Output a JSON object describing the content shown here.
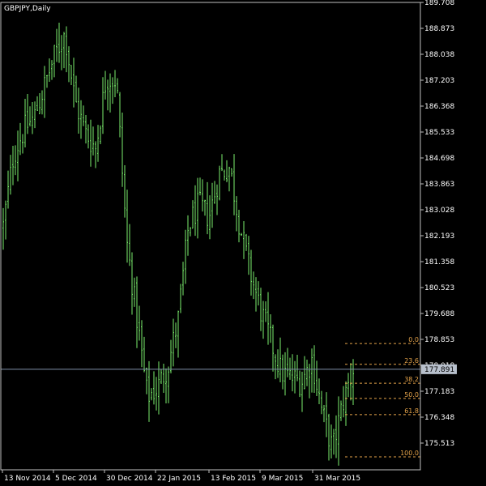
{
  "window": {
    "title": "GBPJPY,Daily"
  },
  "colors": {
    "background": "#000000",
    "grid_frame": "#c0c0c0",
    "bar": "#7cf06e",
    "fib": "#e6a44a",
    "price_line": "#8090a8",
    "price_tag_bg": "#b8c0cc",
    "price_tag_text": "#000000",
    "text": "#ffffff"
  },
  "price_tag": "177.891",
  "fibonacci": {
    "levels": [
      {
        "label": "0.0",
        "value": 178.72
      },
      {
        "label": "23.6",
        "value": 178.05
      },
      {
        "label": "38.2",
        "value": 177.44
      },
      {
        "label": "50.0",
        "value": 176.95
      },
      {
        "label": "61.8",
        "value": 176.43
      },
      {
        "label": "100.0",
        "value": 175.07
      }
    ]
  },
  "chart_data": {
    "type": "ohlc",
    "title": "GBPJPY,Daily",
    "symbol": "GBPJPY",
    "timeframe": "Daily",
    "y_ticks": [
      "189.708",
      "188.873",
      "188.038",
      "187.203",
      "186.368",
      "185.533",
      "184.698",
      "183.863",
      "183.028",
      "182.193",
      "181.358",
      "180.523",
      "179.688",
      "178.853",
      "178.018",
      "177.183",
      "176.348",
      "175.513"
    ],
    "x_ticks": [
      "13 Nov 2014",
      "5 Dec 2014",
      "30 Dec 2014",
      "22 Jan 2015",
      "13 Feb 2015",
      "9 Mar 2015",
      "31 Mar 2015"
    ],
    "ylim": [
      175.2,
      189.708
    ],
    "current_price": 177.891,
    "close_path": [
      {
        "x": "13 Nov 2014",
        "y": 182.5
      },
      {
        "x": "17 Nov 2014",
        "y": 184.8
      },
      {
        "x": "21 Nov 2014",
        "y": 185.6
      },
      {
        "x": "27 Nov 2014",
        "y": 186.0
      },
      {
        "x": "1 Dec 2014",
        "y": 187.0
      },
      {
        "x": "3 Dec 2014",
        "y": 188.0
      },
      {
        "x": "5 Dec 2014",
        "y": 188.7
      },
      {
        "x": "8 Dec 2014",
        "y": 186.5
      },
      {
        "x": "11 Dec 2014",
        "y": 185.5
      },
      {
        "x": "15 Dec 2014",
        "y": 185.0
      },
      {
        "x": "18 Dec 2014",
        "y": 187.3
      },
      {
        "x": "24 Dec 2014",
        "y": 187.2
      },
      {
        "x": "30 Dec 2014",
        "y": 182.0
      },
      {
        "x": "5 Jan 2015",
        "y": 179.5
      },
      {
        "x": "12 Jan 2015",
        "y": 177.0
      },
      {
        "x": "16 Jan 2015",
        "y": 177.3
      },
      {
        "x": "22 Jan 2015",
        "y": 178.0
      },
      {
        "x": "28 Jan 2015",
        "y": 179.5
      },
      {
        "x": "4 Feb 2015",
        "y": 182.5
      },
      {
        "x": "10 Feb 2015",
        "y": 183.2
      },
      {
        "x": "13 Feb 2015",
        "y": 182.8
      },
      {
        "x": "18 Feb 2015",
        "y": 184.2
      },
      {
        "x": "23 Feb 2015",
        "y": 184.4
      },
      {
        "x": "27 Feb 2015",
        "y": 182.5
      },
      {
        "x": "4 Mar 2015",
        "y": 181.0
      },
      {
        "x": "9 Mar 2015",
        "y": 179.8
      },
      {
        "x": "13 Mar 2015",
        "y": 178.8
      },
      {
        "x": "18 Mar 2015",
        "y": 177.8
      },
      {
        "x": "23 Mar 2015",
        "y": 177.6
      },
      {
        "x": "27 Mar 2015",
        "y": 177.5
      },
      {
        "x": "31 Mar 2015",
        "y": 178.2
      },
      {
        "x": "3 Apr 2015",
        "y": 176.5
      },
      {
        "x": "7 Apr 2015",
        "y": 175.3
      },
      {
        "x": "10 Apr 2015",
        "y": 176.8
      },
      {
        "x": "14 Apr 2015",
        "y": 177.9
      }
    ]
  }
}
